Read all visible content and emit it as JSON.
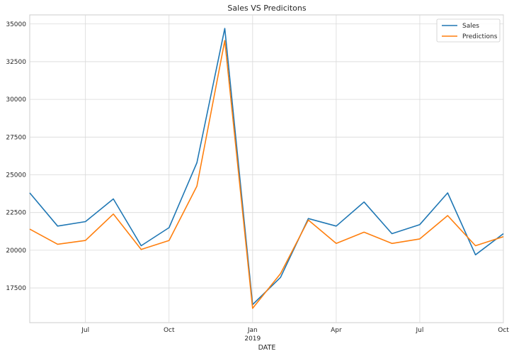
{
  "chart_data": {
    "type": "line",
    "title": "Sales VS Predicitons",
    "xlabel": "DATE",
    "ylabel": "",
    "ylim": [
      15200,
      35600
    ],
    "yticks": [
      17500,
      20000,
      22500,
      25000,
      27500,
      30000,
      32500,
      35000
    ],
    "x": [
      "2018-05",
      "2018-06",
      "2018-07",
      "2018-08",
      "2018-09",
      "2018-10",
      "2018-11",
      "2018-12",
      "2019-01",
      "2019-02",
      "2019-03",
      "2019-04",
      "2019-05",
      "2019-06",
      "2019-07",
      "2019-08",
      "2019-09",
      "2019-10"
    ],
    "xticks": [
      {
        "month": "2018-07",
        "label": "Jul",
        "sublabel": ""
      },
      {
        "month": "2018-10",
        "label": "Oct",
        "sublabel": ""
      },
      {
        "month": "2019-01",
        "label": "Jan",
        "sublabel": "2019"
      },
      {
        "month": "2019-04",
        "label": "Apr",
        "sublabel": ""
      },
      {
        "month": "2019-07",
        "label": "Jul",
        "sublabel": ""
      },
      {
        "month": "2019-10",
        "label": "Oct",
        "sublabel": ""
      }
    ],
    "series": [
      {
        "name": "Sales",
        "color": "#1f77b4",
        "values": [
          23800,
          21600,
          21900,
          23400,
          20300,
          21500,
          25800,
          34700,
          16400,
          18200,
          22100,
          21600,
          23200,
          21100,
          21700,
          23800,
          19700,
          21100
        ]
      },
      {
        "name": "Predictions",
        "color": "#ff7f0e",
        "values": [
          21400,
          20400,
          20650,
          22400,
          20050,
          20650,
          24250,
          33900,
          16150,
          18450,
          22000,
          20450,
          21200,
          20450,
          20750,
          22300,
          20300,
          20900
        ]
      }
    ],
    "grid": true,
    "legend_position": "top-right"
  }
}
